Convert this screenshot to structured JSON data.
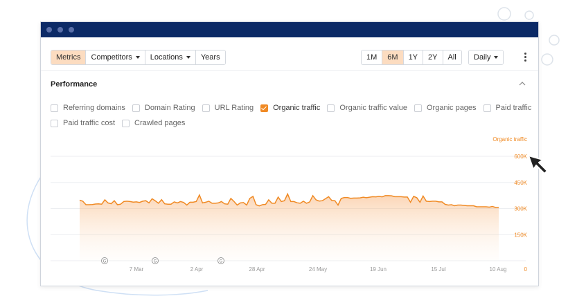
{
  "toolbar": {
    "tabs": [
      {
        "label": "Metrics",
        "active": true
      },
      {
        "label": "Competitors",
        "dropdown": true
      },
      {
        "label": "Locations",
        "dropdown": true
      },
      {
        "label": "Years"
      }
    ],
    "ranges": [
      {
        "label": "1M"
      },
      {
        "label": "6M",
        "active": true
      },
      {
        "label": "1Y"
      },
      {
        "label": "2Y"
      },
      {
        "label": "All"
      }
    ],
    "interval": "Daily",
    "more_icon": "kebab-menu-icon"
  },
  "section": {
    "title": "Performance",
    "collapse_icon": "chevron-up-icon"
  },
  "checkboxes": [
    {
      "label": "Referring domains",
      "checked": false
    },
    {
      "label": "Domain Rating",
      "checked": false
    },
    {
      "label": "URL Rating",
      "checked": false
    },
    {
      "label": "Organic traffic",
      "checked": true
    },
    {
      "label": "Organic traffic value",
      "checked": false
    },
    {
      "label": "Organic pages",
      "checked": false
    },
    {
      "label": "Paid traffic",
      "checked": false
    },
    {
      "label": "Paid traffic cost",
      "checked": false
    },
    {
      "label": "Crawled pages",
      "checked": false
    }
  ],
  "colors": {
    "accent": "#f08a24",
    "titlebar": "#0c2a66",
    "active_tab": "#fcdcc0"
  },
  "chart_data": {
    "type": "area",
    "series": [
      {
        "name": "Organic traffic",
        "values": [
          348,
          342,
          322,
          322,
          323,
          326,
          327,
          325,
          350,
          332,
          328,
          345,
          322,
          325,
          340,
          342,
          340,
          337,
          338,
          335,
          342,
          345,
          332,
          356,
          344,
          330,
          351,
          327,
          325,
          325,
          338,
          332,
          340,
          335,
          320,
          336,
          336,
          340,
          378,
          332,
          336,
          342,
          330,
          330,
          332,
          340,
          327,
          325,
          358,
          340,
          320,
          332,
          334,
          320,
          358,
          370,
          322,
          315,
          322,
          324,
          350,
          330,
          330,
          366,
          340,
          345,
          384,
          340,
          340,
          333,
          330,
          342,
          330,
          338,
          374,
          350,
          343,
          345,
          356,
          368,
          346,
          345,
          320,
          358,
          363,
          363,
          359,
          360,
          360,
          361,
          365,
          362,
          365,
          368,
          367,
          370,
          367,
          374,
          374,
          373,
          368,
          368,
          368,
          366,
          366,
          336,
          370,
          362,
          336,
          372,
          342,
          340,
          342,
          342,
          338,
          338,
          324,
          320,
          322,
          316,
          320,
          320,
          318,
          316,
          316,
          316,
          310,
          310,
          310,
          310,
          308,
          312,
          306,
          306
        ]
      }
    ],
    "x_tick_labels": [
      "7 Mar",
      "2 Apr",
      "28 Apr",
      "24 May",
      "19 Jun",
      "15 Jul",
      "10 Aug"
    ],
    "y_tick_labels": [
      "600K",
      "450K",
      "300K",
      "150K",
      "0"
    ],
    "y_axis_title": "Organic traffic",
    "ylim": [
      0,
      600
    ],
    "y_unit": "K",
    "grid": true,
    "annotation_markers": [
      "G",
      "G",
      "G"
    ]
  }
}
